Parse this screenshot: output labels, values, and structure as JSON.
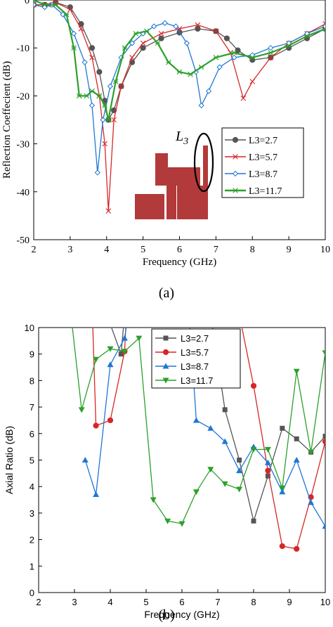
{
  "chart_data": [
    {
      "type": "line",
      "panel_caption": "(a)",
      "xlabel": "Frequency (GHz)",
      "ylabel": "Reflection Coeffecient (dB)",
      "xlim": [
        2,
        10
      ],
      "ylim": [
        -50,
        0
      ],
      "xticks": [
        "2",
        "3",
        "4",
        "5",
        "6",
        "7",
        "8",
        "9",
        "10"
      ],
      "yticks": [
        "0",
        "-10",
        "-20",
        "-30",
        "-40",
        "-50"
      ],
      "grid": false,
      "legend_position": "inside-right",
      "inset_label": "L3",
      "series": [
        {
          "name": "L3=2.7",
          "color": "#555555",
          "marker": "circle",
          "points": [
            [
              2,
              -1
            ],
            [
              2.3,
              -1
            ],
            [
              2.6,
              -0.5
            ],
            [
              3,
              -1.5
            ],
            [
              3.3,
              -5
            ],
            [
              3.6,
              -10
            ],
            [
              3.8,
              -15
            ],
            [
              3.95,
              -21
            ],
            [
              4.05,
              -25
            ],
            [
              4.2,
              -23
            ],
            [
              4.4,
              -18
            ],
            [
              4.7,
              -13
            ],
            [
              5,
              -10
            ],
            [
              5.5,
              -8
            ],
            [
              6,
              -6.8
            ],
            [
              6.5,
              -6
            ],
            [
              7,
              -6.5
            ],
            [
              7.3,
              -8
            ],
            [
              7.6,
              -10.5
            ],
            [
              8,
              -12.5
            ],
            [
              8.5,
              -12
            ],
            [
              9,
              -10
            ],
            [
              9.5,
              -8
            ],
            [
              10,
              -6
            ]
          ]
        },
        {
          "name": "L3=5.7",
          "color": "#d62728",
          "marker": "x",
          "points": [
            [
              2,
              -1
            ],
            [
              2.4,
              -1
            ],
            [
              2.6,
              -0.5
            ],
            [
              3,
              -2
            ],
            [
              3.3,
              -6
            ],
            [
              3.6,
              -12
            ],
            [
              3.8,
              -20
            ],
            [
              3.95,
              -30
            ],
            [
              4.05,
              -44
            ],
            [
              4.2,
              -25
            ],
            [
              4.4,
              -18
            ],
            [
              4.7,
              -12
            ],
            [
              5,
              -9
            ],
            [
              5.5,
              -7
            ],
            [
              6,
              -6
            ],
            [
              6.5,
              -5.2
            ],
            [
              7,
              -6.5
            ],
            [
              7.4,
              -11
            ],
            [
              7.75,
              -20.5
            ],
            [
              8,
              -17
            ],
            [
              8.5,
              -12
            ],
            [
              9,
              -9
            ],
            [
              9.5,
              -7
            ],
            [
              10,
              -5
            ]
          ]
        },
        {
          "name": "L3=8.7",
          "color": "#1f77d4",
          "marker": "diamond",
          "points": [
            [
              2,
              -1
            ],
            [
              2.3,
              -1.5
            ],
            [
              2.5,
              -1
            ],
            [
              2.8,
              -3
            ],
            [
              3.1,
              -7
            ],
            [
              3.4,
              -13
            ],
            [
              3.6,
              -22
            ],
            [
              3.75,
              -36
            ],
            [
              3.9,
              -25
            ],
            [
              4.1,
              -18
            ],
            [
              4.4,
              -12
            ],
            [
              4.7,
              -9
            ],
            [
              5,
              -7
            ],
            [
              5.3,
              -5.5
            ],
            [
              5.6,
              -4.8
            ],
            [
              5.9,
              -5.5
            ],
            [
              6.2,
              -9
            ],
            [
              6.45,
              -15
            ],
            [
              6.6,
              -22
            ],
            [
              6.8,
              -19
            ],
            [
              7.1,
              -14
            ],
            [
              7.5,
              -12
            ],
            [
              8,
              -11.5
            ],
            [
              8.5,
              -10
            ],
            [
              9,
              -9
            ],
            [
              9.5,
              -7
            ],
            [
              10,
              -5.5
            ]
          ]
        },
        {
          "name": "L3=11.7",
          "color": "#2ca02c",
          "marker": "asterisk",
          "points": [
            [
              2,
              0
            ],
            [
              2.3,
              -1
            ],
            [
              2.6,
              -1
            ],
            [
              2.9,
              -3
            ],
            [
              3.1,
              -10
            ],
            [
              3.25,
              -20
            ],
            [
              3.45,
              -20
            ],
            [
              3.6,
              -19
            ],
            [
              3.8,
              -20
            ],
            [
              3.95,
              -22
            ],
            [
              4.05,
              -25
            ],
            [
              4.25,
              -17
            ],
            [
              4.5,
              -10
            ],
            [
              4.8,
              -7
            ],
            [
              5.1,
              -6.5
            ],
            [
              5.4,
              -9
            ],
            [
              5.7,
              -13
            ],
            [
              6.0,
              -15
            ],
            [
              6.3,
              -15.5
            ],
            [
              6.6,
              -14
            ],
            [
              7,
              -12
            ],
            [
              7.5,
              -11
            ],
            [
              8,
              -12
            ],
            [
              8.5,
              -11
            ],
            [
              9,
              -9.5
            ],
            [
              9.5,
              -7.5
            ],
            [
              10,
              -6
            ]
          ]
        }
      ]
    },
    {
      "type": "line",
      "panel_caption": "(b)",
      "xlabel": "Frequency (GHz)",
      "ylabel": "Axial Ratio (dB)",
      "xlim": [
        2,
        10
      ],
      "ylim": [
        0,
        10
      ],
      "xticks": [
        "2",
        "3",
        "4",
        "5",
        "6",
        "7",
        "8",
        "9",
        "10"
      ],
      "yticks": [
        "0",
        "1",
        "2",
        "3",
        "4",
        "5",
        "6",
        "7",
        "8",
        "9",
        "10"
      ],
      "grid": false,
      "legend_position": "top-center",
      "series": [
        {
          "name": "L3=2.7",
          "color": "#555555",
          "marker": "square",
          "points": [
            [
              3.9,
              10.5
            ],
            [
              4.3,
              9.0
            ],
            [
              4.4,
              10.5
            ],
            [
              6.8,
              10.5
            ],
            [
              7.2,
              6.9
            ],
            [
              7.6,
              5.0
            ],
            [
              8.0,
              2.7
            ],
            [
              8.4,
              4.4
            ],
            [
              8.8,
              6.2
            ],
            [
              9.2,
              5.8
            ],
            [
              9.6,
              5.3
            ],
            [
              10.0,
              5.9
            ]
          ]
        },
        {
          "name": "L3=5.7",
          "color": "#d62728",
          "marker": "circle",
          "points": [
            [
              3.5,
              10.5
            ],
            [
              3.6,
              6.3
            ],
            [
              4.0,
              6.5
            ],
            [
              4.4,
              9.1
            ],
            [
              4.45,
              10.5
            ],
            [
              7.6,
              10.5
            ],
            [
              8.0,
              7.8
            ],
            [
              8.4,
              4.6
            ],
            [
              8.8,
              1.75
            ],
            [
              9.2,
              1.65
            ],
            [
              9.6,
              3.6
            ],
            [
              10.0,
              5.7
            ]
          ]
        },
        {
          "name": "L3=8.7",
          "color": "#1f77d4",
          "marker": "triangle",
          "points": [
            [
              3.3,
              5.0
            ],
            [
              3.6,
              3.7
            ],
            [
              4.0,
              8.6
            ],
            [
              4.4,
              9.6
            ],
            [
              4.5,
              10.5
            ],
            [
              6.2,
              10.5
            ],
            [
              6.4,
              6.5
            ],
            [
              6.8,
              6.2
            ],
            [
              7.2,
              5.7
            ],
            [
              7.6,
              4.6
            ],
            [
              8.0,
              5.5
            ],
            [
              8.4,
              4.9
            ],
            [
              8.8,
              3.8
            ],
            [
              9.2,
              5.0
            ],
            [
              9.6,
              3.4
            ],
            [
              10.0,
              2.5
            ]
          ]
        },
        {
          "name": "L3=11.7",
          "color": "#2ca02c",
          "marker": "triangle-down",
          "points": [
            [
              2.9,
              10.5
            ],
            [
              3.2,
              6.9
            ],
            [
              3.6,
              8.8
            ],
            [
              4.0,
              9.2
            ],
            [
              4.4,
              9.1
            ],
            [
              4.8,
              9.6
            ],
            [
              5.2,
              3.5
            ],
            [
              5.6,
              2.7
            ],
            [
              6.0,
              2.6
            ],
            [
              6.4,
              3.8
            ],
            [
              6.8,
              4.65
            ],
            [
              7.2,
              4.1
            ],
            [
              7.6,
              3.9
            ],
            [
              8.0,
              5.4
            ],
            [
              8.4,
              5.4
            ],
            [
              8.8,
              3.95
            ],
            [
              9.2,
              8.35
            ],
            [
              9.6,
              5.3
            ],
            [
              10.0,
              9.05
            ]
          ]
        }
      ]
    }
  ]
}
